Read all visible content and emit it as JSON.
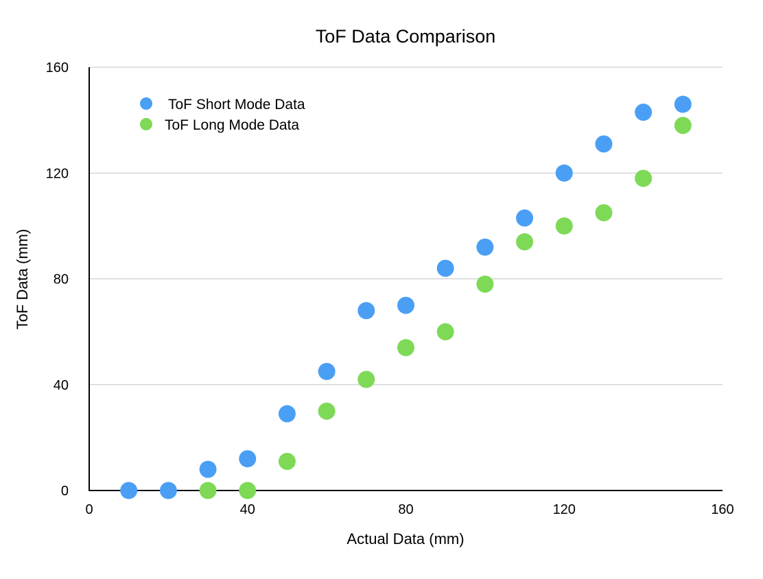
{
  "chart_data": {
    "type": "scatter",
    "title": "ToF Data Comparison",
    "xlabel": "Actual Data (mm)",
    "ylabel": "ToF Data (mm)",
    "xlim": [
      0,
      160
    ],
    "ylim": [
      0,
      160
    ],
    "xticks": [
      0,
      40,
      80,
      120,
      160
    ],
    "yticks": [
      0,
      40,
      80,
      120,
      160
    ],
    "grid": "horizontal",
    "legend_position": "top-left",
    "series": [
      {
        "name": "ToF Short Mode Data",
        "color": "#4a9ff5",
        "x": [
          10,
          20,
          30,
          40,
          50,
          60,
          70,
          80,
          90,
          100,
          110,
          120,
          130,
          140,
          150
        ],
        "y": [
          0,
          0,
          8,
          12,
          29,
          45,
          68,
          70,
          84,
          92,
          103,
          120,
          131,
          143,
          146
        ]
      },
      {
        "name": "ToF Long Mode Data",
        "color": "#7ed957",
        "x": [
          30,
          40,
          50,
          60,
          70,
          80,
          90,
          100,
          110,
          120,
          130,
          140,
          150
        ],
        "y": [
          0,
          0,
          11,
          30,
          42,
          54,
          60,
          78,
          94,
          100,
          105,
          118,
          138
        ]
      }
    ]
  }
}
